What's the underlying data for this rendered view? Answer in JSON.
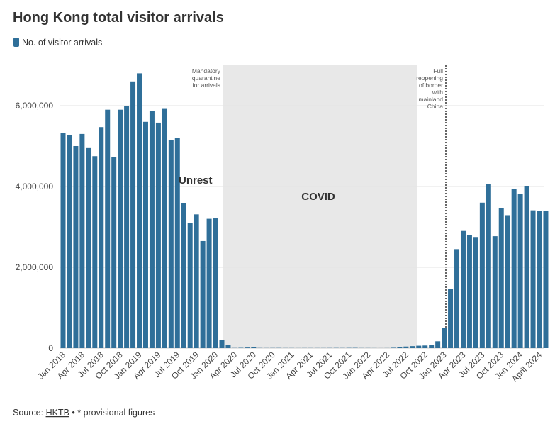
{
  "chart_data": {
    "type": "bar",
    "title": "Hong Kong total visitor arrivals",
    "series": [
      {
        "name": "No. of visitor arrivals",
        "color": "#2f6f99",
        "values": [
          5330000,
          5280000,
          5000000,
          5300000,
          4950000,
          4750000,
          5470000,
          5900000,
          4720000,
          5900000,
          6000000,
          6600000,
          6800000,
          5600000,
          5870000,
          5580000,
          5920000,
          5150000,
          5200000,
          3590000,
          3100000,
          3310000,
          2650000,
          3200000,
          3210000,
          200000,
          80000,
          4000,
          8000,
          15000,
          20000,
          4000,
          3000,
          4000,
          5000,
          3000,
          3000,
          2000,
          3000,
          3000,
          3000,
          3000,
          4000,
          5000,
          4000,
          6000,
          7000,
          3000,
          3000,
          2000,
          1000,
          2000,
          10000,
          30000,
          40000,
          50000,
          60000,
          65000,
          80000,
          170000,
          497000,
          1460000,
          2450000,
          2900000,
          2800000,
          2750000,
          3600000,
          4070000,
          2770000,
          3470000,
          3290000,
          3930000,
          3820000,
          4000000,
          3410000,
          3390000,
          3400000
        ]
      }
    ],
    "categories": [
      "Jan 2018",
      null,
      null,
      "Apr 2018",
      null,
      null,
      "Jul 2018",
      null,
      null,
      "Oct 2018",
      null,
      null,
      "Jan 2019",
      null,
      null,
      "Apr 2019",
      null,
      null,
      "Jul 2019",
      null,
      null,
      "Oct 2019",
      null,
      null,
      "Jan 2020",
      null,
      null,
      "Apr 2020",
      null,
      null,
      "Jul 2020",
      null,
      null,
      "Oct 2020",
      null,
      null,
      "Jan 2021",
      null,
      null,
      "Apr 2021",
      null,
      null,
      "Jul 2021",
      null,
      null,
      "Oct 2021",
      null,
      null,
      "Jan 2022",
      null,
      null,
      "Apr 2022",
      null,
      null,
      "Jul 2022",
      null,
      null,
      "Oct 2022",
      null,
      null,
      "Jan 2023",
      null,
      null,
      "Apr 2023",
      null,
      null,
      "Jul 2023",
      null,
      null,
      "Oct 2023",
      null,
      null,
      "Jan 2024",
      null,
      null,
      "April 2024",
      null
    ],
    "ylim": [
      0,
      7000000
    ],
    "yticks": [
      0,
      {
        "value": 2000000,
        "label": "2,000,000"
      },
      {
        "value": 4000000,
        "label": "4,000,000"
      },
      {
        "value": 6000000,
        "label": "6,000,000"
      }
    ],
    "grid": true,
    "annotations": {
      "quarantine": [
        "Mandatory",
        "quarantine",
        "for arrivals"
      ],
      "reopening": [
        "Full",
        "reopening",
        "of border",
        "with",
        "mainland",
        "China"
      ],
      "unrest": "Unrest",
      "covid": "COVID"
    },
    "source": {
      "prefix": "Source: ",
      "link": "HKTB",
      "suffix": " • * provisional figures"
    }
  }
}
